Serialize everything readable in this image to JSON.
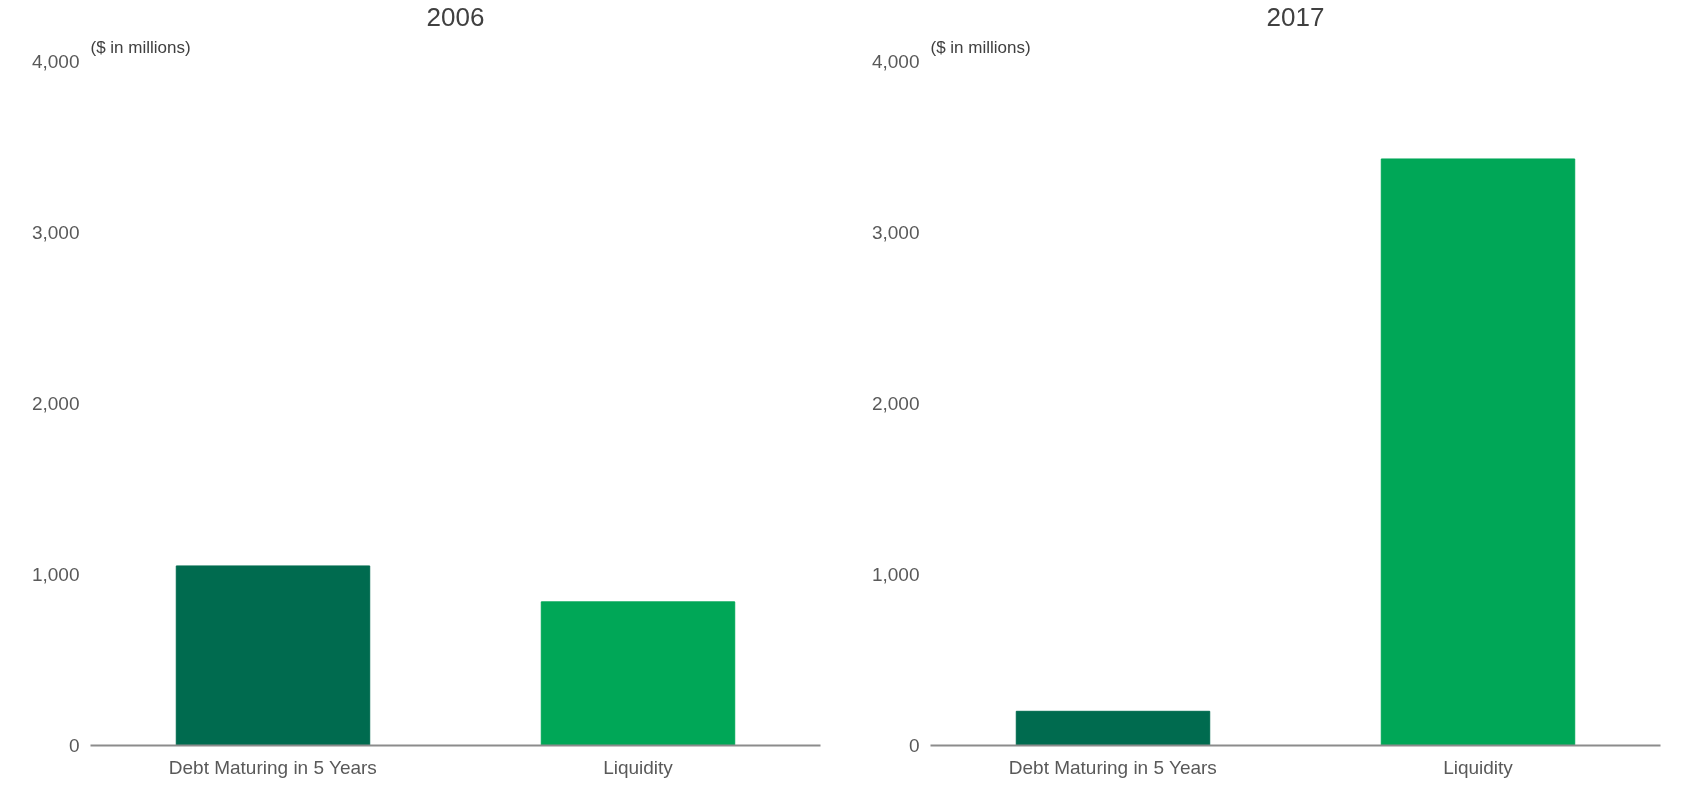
{
  "chart_data": [
    {
      "type": "bar",
      "title": "2006",
      "ylabel": "($ in millions)",
      "categories": [
        "Debt Maturing in 5 Years",
        "Liquidity"
      ],
      "values": [
        1050,
        840
      ],
      "colors": [
        "#006b4f",
        "#00a757"
      ],
      "ylim": [
        0,
        4000
      ],
      "yticks": [
        0,
        {
          "value": 1000,
          "label": "1,000"
        },
        {
          "value": 2000,
          "label": "2,000"
        },
        {
          "value": 3000,
          "label": "3,000"
        },
        {
          "value": 4000,
          "label": "4,000"
        }
      ],
      "grid": false
    },
    {
      "type": "bar",
      "title": "2017",
      "ylabel": "($ in millions)",
      "categories": [
        "Debt Maturing in 5 Years",
        "Liquidity"
      ],
      "values": [
        200,
        3430
      ],
      "colors": [
        "#006b4f",
        "#00a757"
      ],
      "ylim": [
        0,
        4000
      ],
      "yticks": [
        0,
        {
          "value": 1000,
          "label": "1,000"
        },
        {
          "value": 2000,
          "label": "2,000"
        },
        {
          "value": 3000,
          "label": "3,000"
        },
        {
          "value": 4000,
          "label": "4,000"
        }
      ],
      "grid": false
    }
  ]
}
